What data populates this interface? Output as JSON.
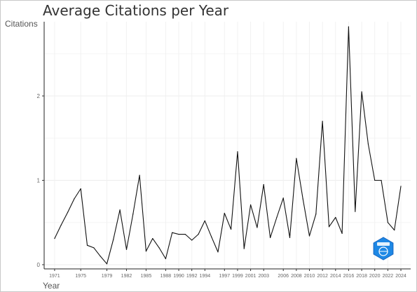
{
  "chart_data": {
    "type": "line",
    "title": "Average Citations per Year",
    "xlabel": "Year",
    "ylabel": "Citations",
    "ylim": [
      -0.05,
      2.88
    ],
    "yticks": [
      0,
      1,
      2
    ],
    "grid": true,
    "x_ticks": [
      1971,
      1975,
      1979,
      1982,
      1985,
      1988,
      1990,
      1992,
      1994,
      1997,
      1999,
      2001,
      2003,
      2006,
      2008,
      2010,
      2012,
      2014,
      2016,
      2018,
      2020,
      2022,
      2024
    ],
    "series": [
      {
        "x": [
          1971,
          1972,
          1973,
          1974,
          1975,
          1976,
          1977,
          1978,
          1979,
          1980,
          1981,
          1982,
          1983,
          1984,
          1985,
          1986,
          1987,
          1988,
          1989,
          1990,
          1991,
          1992,
          1993,
          1994,
          1995,
          1996,
          1997,
          1998,
          1999,
          2000,
          2001,
          2002,
          2003,
          2004,
          2005,
          2006,
          2007,
          2008,
          2009,
          2010,
          2011,
          2012,
          2013,
          2014,
          2015,
          2016,
          2017,
          2018,
          2019,
          2020,
          2021,
          2022,
          2023,
          2024
        ],
        "values": [
          0.31,
          0.47,
          0.62,
          0.78,
          0.9,
          0.23,
          0.2,
          0.1,
          0.01,
          0.3,
          0.65,
          0.18,
          0.6,
          1.06,
          0.16,
          0.31,
          0.2,
          0.07,
          0.38,
          0.36,
          0.36,
          0.29,
          0.36,
          0.52,
          0.33,
          0.15,
          0.61,
          0.42,
          1.34,
          0.19,
          0.71,
          0.44,
          0.95,
          0.32,
          0.56,
          0.79,
          0.32,
          1.26,
          0.78,
          0.34,
          0.6,
          1.7,
          0.45,
          0.56,
          0.37,
          2.82,
          0.63,
          2.05,
          1.43,
          1.0,
          1.0,
          0.5,
          0.41,
          0.93
        ]
      }
    ]
  },
  "logo": {
    "color": "#1e88e5"
  }
}
